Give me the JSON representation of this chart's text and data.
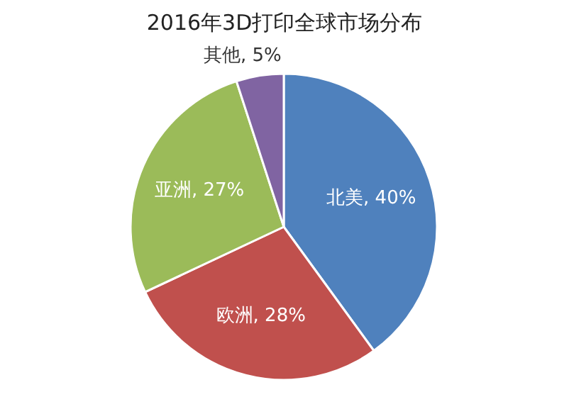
{
  "chart_data": {
    "type": "pie",
    "title": "2016年3D打印全球市场分布",
    "categories": [
      "北美",
      "欧洲",
      "亚洲",
      "其他"
    ],
    "values": [
      40,
      28,
      27,
      5
    ],
    "colors": [
      "#4f81bd",
      "#c0504d",
      "#9bbb59",
      "#8064a2"
    ],
    "value_labels": [
      "40%",
      "28%",
      "27%",
      "5%"
    ]
  }
}
